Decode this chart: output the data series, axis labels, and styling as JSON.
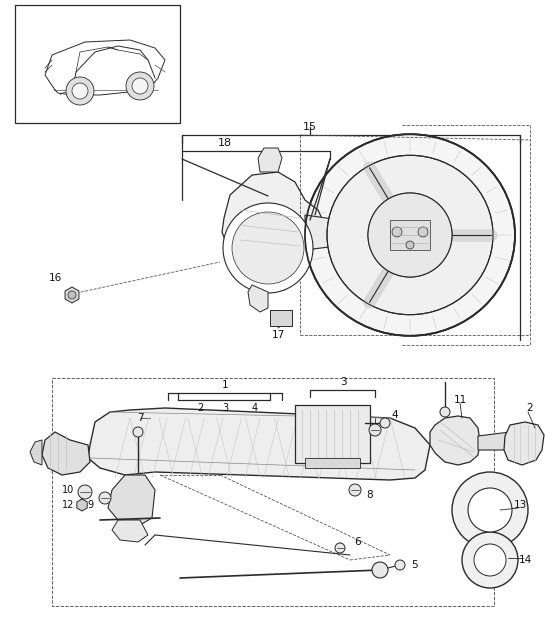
{
  "bg_color": "#ffffff",
  "lc": "#2a2a2a",
  "fig_width": 5.45,
  "fig_height": 6.28,
  "dpi": 100
}
